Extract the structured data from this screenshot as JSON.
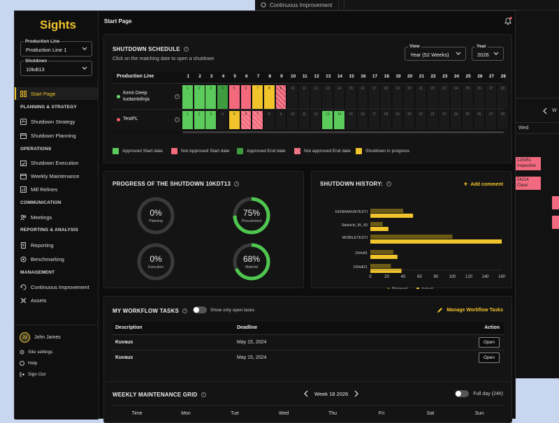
{
  "bg_top": {
    "label": "Continuous Improvement"
  },
  "bg_right": {
    "day": "Wed",
    "cells": [
      {
        "text": "125451\nInspection"
      },
      {
        "text": "54214\nClean"
      }
    ]
  },
  "sidebar": {
    "logo": "Sights",
    "production_line": {
      "label": "Production Line",
      "value": "Production Line 1"
    },
    "shutdown": {
      "label": "Shutdown",
      "value": "10kdt13"
    },
    "start_page": "Start Page",
    "sections": [
      {
        "title": "PLANNING & STRATEGY",
        "items": [
          {
            "label": "Shutdown Strategy",
            "icon": "strategy-icon"
          },
          {
            "label": "Shutdown Planning",
            "icon": "calendar-icon"
          }
        ]
      },
      {
        "title": "OPERATIONS",
        "items": [
          {
            "label": "Shutdown Execution",
            "icon": "calendar-check-icon"
          },
          {
            "label": "Weekly Maintenance",
            "icon": "calendar-icon"
          },
          {
            "label": "Mill Relines",
            "icon": "chart-icon"
          }
        ]
      },
      {
        "title": "COMMUNICATION",
        "items": [
          {
            "label": "Meetings",
            "icon": "people-icon"
          }
        ]
      },
      {
        "title": "REPORTING & ANALYSIS",
        "items": [
          {
            "label": "Reporting",
            "icon": "report-icon"
          },
          {
            "label": "Benchmarking",
            "icon": "benchmark-icon"
          }
        ]
      },
      {
        "title": "MANAGEMENT",
        "items": [
          {
            "label": "Continuous Improvement",
            "icon": "improvement-icon"
          },
          {
            "label": "Assets",
            "icon": "assets-icon"
          }
        ]
      }
    ],
    "user": {
      "initials": "JJ",
      "name": "John James"
    },
    "site_settings": "Site settings",
    "help": "Help",
    "sign_out": "Sign Out"
  },
  "page_title": "Start Page",
  "schedule": {
    "title": "SHUTDOWN SCHEDULE",
    "subtitle": "Click on the matching date to open a shutdown",
    "view": {
      "label": "View",
      "value": "Year (52 Weeks)"
    },
    "year": {
      "label": "Year",
      "value": "2026"
    },
    "col_header": "Production Line",
    "weeks": [
      "1",
      "2",
      "3",
      "4",
      "5",
      "6",
      "7",
      "8",
      "9",
      "10",
      "11",
      "12",
      "13",
      "14",
      "15",
      "16",
      "17",
      "18",
      "19",
      "20",
      "21",
      "22",
      "23",
      "24",
      "25",
      "26",
      "27",
      "28"
    ],
    "lines": [
      {
        "name": "Kemi Deep tuotantolinja",
        "dot": "#6ddc6d",
        "cells": [
          "A",
          "A",
          "A",
          "E",
          "N",
          "N",
          "P",
          "P",
          "X",
          "",
          "",
          "",
          "",
          "",
          "",
          "",
          "",
          "",
          "",
          "",
          "",
          "",
          "",
          "",
          "",
          "",
          "",
          ""
        ],
        "nums": [
          "1",
          "2",
          "3",
          "4",
          "5",
          "6",
          "7",
          "8",
          "9",
          "10",
          "11",
          "12",
          "13",
          "14",
          "15",
          "16",
          "17",
          "18",
          "19",
          "20",
          "21",
          "22",
          "23",
          "24",
          "25",
          "26",
          "27",
          "28"
        ]
      },
      {
        "name": "TestPL",
        "dot": "#f05a6e",
        "cells": [
          "A",
          "A",
          "A",
          "",
          "P",
          "N",
          "N",
          "",
          "",
          "",
          "",
          "",
          "A",
          "A",
          "",
          "",
          "",
          "",
          "",
          "",
          "",
          "",
          "",
          "",
          "",
          "",
          "",
          ""
        ],
        "nums": [
          "1",
          "2",
          "3",
          "4",
          "5",
          "6",
          "7",
          "8",
          "9",
          "10",
          "11",
          "12",
          "13",
          "14",
          "15",
          "16",
          "17",
          "18",
          "19",
          "20",
          "21",
          "22",
          "23",
          "24",
          "25",
          "26",
          "27",
          "28"
        ]
      }
    ],
    "legend": [
      {
        "label": "Approved Start date",
        "color": "#5bcb5b",
        "pattern": false
      },
      {
        "label": "Not Approved Start date",
        "color": "#f36a7c",
        "pattern": false
      },
      {
        "label": "Approved End date",
        "color": "#3f9b3f",
        "pattern": false
      },
      {
        "label": "Not approved End date",
        "color": "#e05a6e",
        "pattern": true
      },
      {
        "label": "Shutdown in progress",
        "color": "#f2c42c",
        "pattern": false
      }
    ]
  },
  "progress": {
    "title": "PROGRESS OF THE SHUTDOWN 10KDT13",
    "rings": [
      {
        "pct": "0%",
        "label": "Planning",
        "value": 0
      },
      {
        "pct": "75%",
        "label": "Procurement",
        "value": 0.75
      },
      {
        "pct": "0%",
        "label": "Execution",
        "value": 0
      },
      {
        "pct": "68%",
        "label": "Material",
        "value": 0.68
      }
    ]
  },
  "history": {
    "title": "SHUTDOWN HISTORY:",
    "add_comment": "Add comment",
    "legend_planned": "Planned",
    "legend_actual": "Actual"
  },
  "chart_data": {
    "type": "bar",
    "orientation": "horizontal",
    "categories": [
      "KENRAAUNTESTI",
      "Salwicki_W_43",
      "MOBILETESTI",
      "10rkdl1",
      "10rkdl11"
    ],
    "series": [
      {
        "name": "Planned",
        "color": "#6b5a16",
        "values": [
          40,
          15,
          100,
          28,
          25
        ]
      },
      {
        "name": "Actual",
        "color": "#f2c42c",
        "values": [
          52,
          22,
          160,
          33,
          38
        ]
      }
    ],
    "xticks": [
      "0",
      "20",
      "40",
      "60",
      "80",
      "100",
      "120",
      "140",
      "160"
    ],
    "xlim": [
      0,
      160
    ],
    "legend": "bottom"
  },
  "tasks": {
    "title": "MY WORKFLOW TASKS",
    "toggle_label": "Show only open tasks",
    "manage": "Manage Workflow Tasks",
    "headers": {
      "description": "Description",
      "deadline": "Deadline",
      "action": "Action"
    },
    "rows": [
      {
        "description": "Kuvaus",
        "deadline": "May 15, 2024",
        "action": "Open"
      },
      {
        "description": "Kuvaus",
        "deadline": "May 15, 2024",
        "action": "Open"
      }
    ]
  },
  "weekly": {
    "title": "WEEKLY MAINTENANCE GRID",
    "week": "Week 18 2026",
    "full_day": "Full day (24h)",
    "days": [
      "Time",
      "Mon",
      "Tue",
      "Wed",
      "Thu",
      "Fri",
      "Sat",
      "Sun"
    ]
  }
}
